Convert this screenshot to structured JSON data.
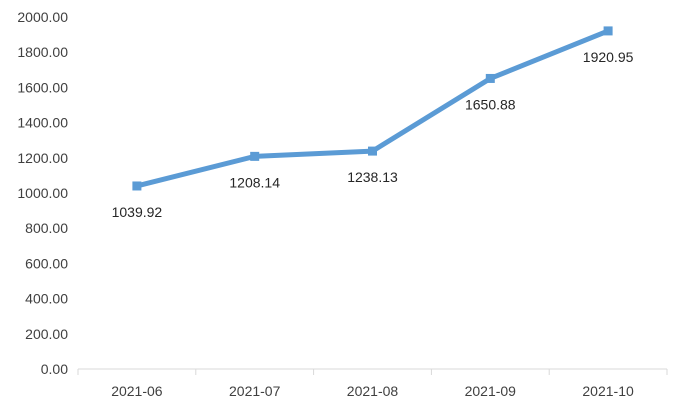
{
  "chart_data": {
    "type": "line",
    "categories": [
      "2021-06",
      "2021-07",
      "2021-08",
      "2021-09",
      "2021-10"
    ],
    "series": [
      {
        "values": [
          1039.92,
          1208.14,
          1238.13,
          1650.88,
          1920.95
        ],
        "data_labels": [
          "1039.92",
          "1208.14",
          "1238.13",
          "1650.88",
          "1920.95"
        ],
        "color": "#5b9bd5",
        "marker": "square"
      }
    ],
    "yticks": [
      "0.00",
      "200.00",
      "400.00",
      "600.00",
      "800.00",
      "1000.00",
      "1200.00",
      "1400.00",
      "1600.00",
      "1800.00",
      "2000.00"
    ],
    "ylim": [
      0,
      2000
    ],
    "grid": false,
    "axis_color": "#d9d9d9"
  }
}
